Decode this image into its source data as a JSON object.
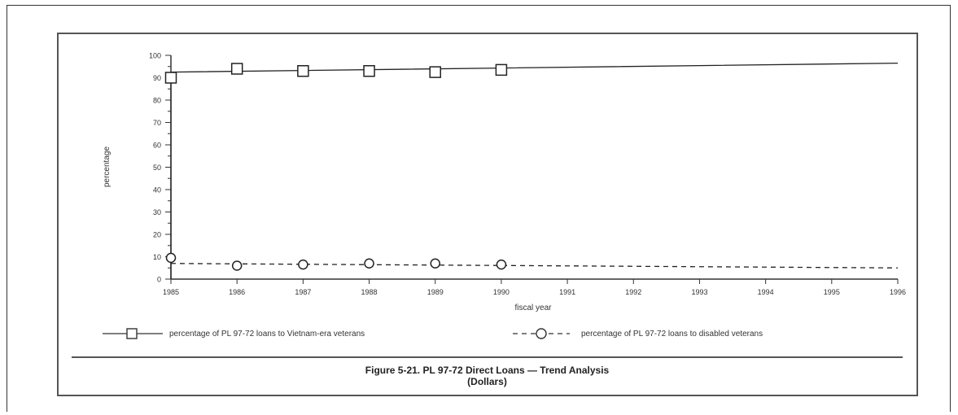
{
  "chart_data": {
    "type": "line",
    "ylabel": "percentage",
    "xlabel": "fiscal year",
    "ylim": [
      0,
      100
    ],
    "xlim": [
      1985,
      1996
    ],
    "yticks": [
      "0",
      "10",
      "20",
      "30",
      "40",
      "50",
      "60",
      "70",
      "80",
      "90",
      "100"
    ],
    "xticks": [
      "1985",
      "1986",
      "1987",
      "1988",
      "1989",
      "1990",
      "1991",
      "1992",
      "1993",
      "1994",
      "1995",
      "1996"
    ],
    "series": [
      {
        "name": "percentage of PL 97-72 loans to Vietnam-era veterans",
        "line_style": "solid",
        "marker": "square",
        "points_x": [
          1985,
          1986,
          1987,
          1988,
          1989,
          1990
        ],
        "points_y": [
          90,
          94,
          93,
          93,
          92.5,
          93.5
        ],
        "trend": [
          [
            1985,
            0
          ],
          [
            1985,
            92.5
          ],
          [
            1996,
            96.5
          ]
        ]
      },
      {
        "name": "percentage of PL 97-72 loans to disabled veterans",
        "line_style": "dashed",
        "marker": "circle",
        "points_x": [
          1985,
          1986,
          1987,
          1988,
          1989,
          1990
        ],
        "points_y": [
          9.5,
          6,
          6.5,
          7,
          7,
          6.5
        ],
        "trend": [
          [
            1985,
            7
          ],
          [
            1996,
            5
          ]
        ]
      }
    ],
    "legend_position": "bottom"
  },
  "caption": {
    "line1": "Figure 5-21.  PL 97-72 Direct Loans — Trend Analysis",
    "line2": "(Dollars)"
  }
}
